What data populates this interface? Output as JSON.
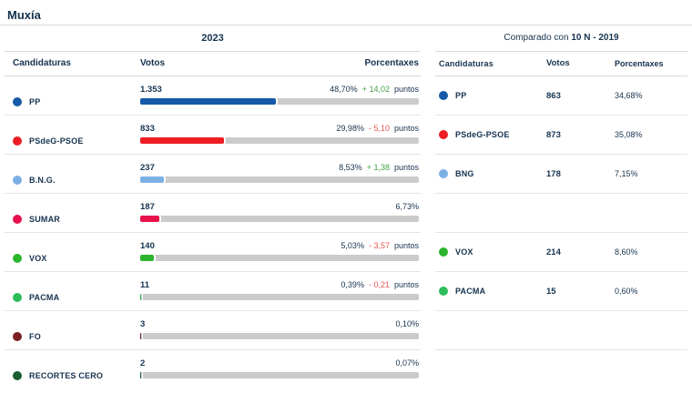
{
  "page": {
    "title": "Muxía"
  },
  "colors": {
    "text": "#16334f",
    "divider": "#e3e3e3",
    "bar_track": "#cbcbcb",
    "delta_up": "#45a049",
    "delta_down": "#e4574e"
  },
  "left_table": {
    "year_header": "2023",
    "columns": {
      "candidaturas": "Candidaturas",
      "votos": "Votos",
      "porcentaxes": "Porcentaxes"
    },
    "rows": [
      {
        "party": "PP",
        "color": "#1559a8",
        "votes": "1.353",
        "pct": "48,70%",
        "pct_value": 48.7,
        "delta": "+ 14,02",
        "delta_dir": "up",
        "puntos": "puntos"
      },
      {
        "party": "PSdeG-PSOE",
        "color": "#ee1d23",
        "votes": "833",
        "pct": "29,98%",
        "pct_value": 29.98,
        "delta": "- 5,10",
        "delta_dir": "down",
        "puntos": "puntos"
      },
      {
        "party": "B.N.G.",
        "color": "#7cb0e5",
        "votes": "237",
        "pct": "8,53%",
        "pct_value": 8.53,
        "delta": "+ 1,38",
        "delta_dir": "up",
        "puntos": "puntos"
      },
      {
        "party": "SUMAR",
        "color": "#e8114b",
        "votes": "187",
        "pct": "6,73%",
        "pct_value": 6.73,
        "delta": "",
        "delta_dir": "",
        "puntos": ""
      },
      {
        "party": "VOX",
        "color": "#2db42d",
        "votes": "140",
        "pct": "5,03%",
        "pct_value": 5.03,
        "delta": "- 3,57",
        "delta_dir": "down",
        "puntos": "puntos"
      },
      {
        "party": "PACMA",
        "color": "#2dbd5a",
        "votes": "11",
        "pct": "0,39%",
        "pct_value": 0.39,
        "delta": "- 0,21",
        "delta_dir": "down",
        "puntos": "puntos"
      },
      {
        "party": "FO",
        "color": "#7a2020",
        "votes": "3",
        "pct": "0,10%",
        "pct_value": 0.1,
        "delta": "",
        "delta_dir": "",
        "puntos": ""
      },
      {
        "party": "RECORTES CERO",
        "color": "#1c5e31",
        "votes": "2",
        "pct": "0,07%",
        "pct_value": 0.07,
        "delta": "",
        "delta_dir": "",
        "puntos": ""
      }
    ]
  },
  "right_table": {
    "compare_label": "Comparado con",
    "compare_bold": "10 N - 2019",
    "columns": {
      "candidaturas": "Candidaturas",
      "votos": "Votos",
      "porcentaxes": "Porcentaxes"
    },
    "rows": [
      {
        "party": "PP",
        "color": "#1559a8",
        "votes": "863",
        "pct": "34,68%"
      },
      {
        "party": "PSdeG-PSOE",
        "color": "#ee1d23",
        "votes": "873",
        "pct": "35,08%"
      },
      {
        "party": "BNG",
        "color": "#7cb0e5",
        "votes": "178",
        "pct": "7,15%"
      },
      {
        "party": "",
        "color": "",
        "votes": "",
        "pct": ""
      },
      {
        "party": "VOX",
        "color": "#2db42d",
        "votes": "214",
        "pct": "8,60%"
      },
      {
        "party": "PACMA",
        "color": "#2dbd5a",
        "votes": "15",
        "pct": "0,60%"
      },
      {
        "party": "",
        "color": "",
        "votes": "",
        "pct": ""
      },
      {
        "party": "",
        "color": "",
        "votes": "",
        "pct": ""
      }
    ]
  },
  "chart_data": {
    "type": "bar",
    "title": "Muxía",
    "orientation": "horizontal",
    "xlim": [
      0,
      100
    ],
    "series": [
      {
        "name": "2023",
        "categories": [
          "PP",
          "PSdeG-PSOE",
          "B.N.G.",
          "SUMAR",
          "VOX",
          "PACMA",
          "FO",
          "RECORTES CERO"
        ],
        "votes": [
          1353,
          833,
          237,
          187,
          140,
          11,
          3,
          2
        ],
        "pct": [
          48.7,
          29.98,
          8.53,
          6.73,
          5.03,
          0.39,
          0.1,
          0.07
        ],
        "delta_puntos": [
          14.02,
          -5.1,
          1.38,
          null,
          -3.57,
          -0.21,
          null,
          null
        ],
        "colors": [
          "#1559a8",
          "#ee1d23",
          "#7cb0e5",
          "#e8114b",
          "#2db42d",
          "#2dbd5a",
          "#7a2020",
          "#1c5e31"
        ]
      },
      {
        "name": "Comparado con 10 N - 2019",
        "categories": [
          "PP",
          "PSdeG-PSOE",
          "BNG",
          "VOX",
          "PACMA"
        ],
        "votes": [
          863,
          873,
          178,
          214,
          15
        ],
        "pct": [
          34.68,
          35.08,
          7.15,
          8.6,
          0.6
        ]
      }
    ]
  }
}
